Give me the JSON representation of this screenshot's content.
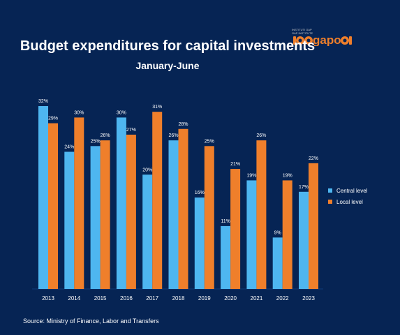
{
  "title": "Budget expenditures for capital investments",
  "subtitle": "January-June",
  "source": "Source: Ministry of Finance, Labor and Transfers",
  "logo": {
    "small_text_1": "INSTITUTI GAP",
    "small_text_2": "GAP INSTITUTE",
    "wordmark": "gapo"
  },
  "colors": {
    "background": "#062454",
    "central": "#4eb6f0",
    "local": "#ef7f2b",
    "text": "#ffffff"
  },
  "chart_data": {
    "type": "bar",
    "title": "Budget expenditures for capital investments",
    "subtitle": "January-June",
    "categories": [
      "2013",
      "2014",
      "2015",
      "2016",
      "2017",
      "2018",
      "2019",
      "2020",
      "2021",
      "2022",
      "2023"
    ],
    "series": [
      {
        "name": "Central level",
        "values": [
          32,
          24,
          25,
          30,
          20,
          26,
          16,
          11,
          19,
          9,
          17
        ],
        "color": "#4eb6f0"
      },
      {
        "name": "Local level",
        "values": [
          29,
          30,
          26,
          27,
          31,
          28,
          25,
          21,
          26,
          19,
          22
        ],
        "color": "#ef7f2b"
      }
    ],
    "data_labels": [
      [
        "32%",
        "24%",
        "25%",
        "30%",
        "20%",
        "26%",
        "16%",
        "11%",
        "19%",
        "9%",
        "17%"
      ],
      [
        "29%",
        "30%",
        "26%",
        "27%",
        "31%",
        "28%",
        "25%",
        "21%",
        "26%",
        "19%",
        "22%"
      ]
    ],
    "unit": "%",
    "ylim": [
      0,
      33
    ],
    "grid": false,
    "legend_position": "right"
  }
}
